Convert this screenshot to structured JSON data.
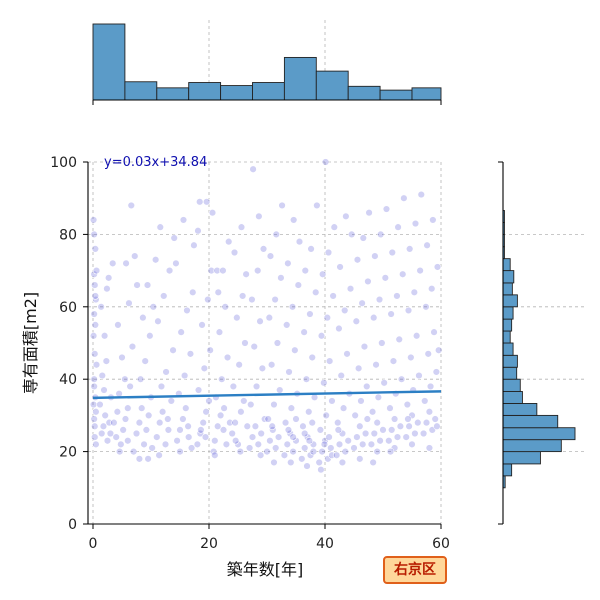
{
  "chart_data": {
    "type": "scatter",
    "xlabel": "築年数[年]",
    "ylabel": "専有面積[m2]",
    "xlim": [
      -1,
      60
    ],
    "ylim": [
      0,
      100
    ],
    "x_ticks": [
      0,
      20,
      40,
      60
    ],
    "y_ticks": [
      0,
      20,
      40,
      60,
      80,
      100
    ],
    "grid": true,
    "regression": {
      "equation": "y=0.03x+34.84",
      "slope": 0.03,
      "intercept": 34.84
    },
    "badge": "右京区",
    "colors": {
      "points": "#5a5ad8",
      "regression": "#2c7fc4",
      "histogram": "#5b9bc8",
      "badge_border": "#e0601a",
      "badge_fill": "#ffd79a",
      "badge_text": "#b81d00"
    },
    "top_histogram": {
      "bin_edges": [
        0,
        5.5,
        11,
        16.5,
        22,
        27.5,
        33,
        38.5,
        44,
        49.5,
        55,
        60.5
      ],
      "counts": [
        100,
        24,
        16,
        23,
        19,
        23,
        56,
        38,
        18,
        13,
        16
      ]
    },
    "right_histogram": {
      "bin_edges": [
        10,
        13.3,
        16.6,
        20,
        23.3,
        26.6,
        30,
        33.3,
        36.6,
        40,
        43.3,
        46.6,
        50,
        53.3,
        56.6,
        60,
        63.3,
        66.6,
        70,
        73.3,
        76.6,
        80,
        83.3,
        86.6
      ],
      "counts": [
        3,
        12,
        52,
        81,
        100,
        76,
        47,
        27,
        24,
        19,
        20,
        14,
        10,
        12,
        14,
        20,
        13,
        15,
        10,
        2,
        2,
        2,
        2
      ]
    },
    "points": [
      [
        0.3,
        27
      ],
      [
        0.2,
        29
      ],
      [
        0.5,
        31
      ],
      [
        0.1,
        33
      ],
      [
        0.4,
        35
      ],
      [
        0.2,
        40
      ],
      [
        0.6,
        44
      ],
      [
        0.3,
        47
      ],
      [
        0.1,
        52
      ],
      [
        0.4,
        55
      ],
      [
        0.2,
        58
      ],
      [
        0.5,
        62
      ],
      [
        0.3,
        66
      ],
      [
        0.2,
        69
      ],
      [
        0.6,
        70
      ],
      [
        0.4,
        76
      ],
      [
        0.2,
        80
      ],
      [
        0.1,
        84
      ],
      [
        0.3,
        24
      ],
      [
        0.5,
        22
      ],
      [
        0.2,
        38
      ],
      [
        0.4,
        63
      ],
      [
        1.5,
        25
      ],
      [
        1.8,
        27
      ],
      [
        2.1,
        30
      ],
      [
        2.5,
        23
      ],
      [
        1.2,
        33
      ],
      [
        2.8,
        28
      ],
      [
        3.1,
        35
      ],
      [
        1.6,
        41
      ],
      [
        2.3,
        45
      ],
      [
        2.0,
        52
      ],
      [
        1.4,
        60
      ],
      [
        2.7,
        68
      ],
      [
        3.4,
        72
      ],
      [
        1.9,
        37
      ],
      [
        2.4,
        65
      ],
      [
        3.0,
        25
      ],
      [
        3.6,
        28
      ],
      [
        4.2,
        31
      ],
      [
        4.0,
        24
      ],
      [
        4.8,
        22
      ],
      [
        5.2,
        26
      ],
      [
        5.6,
        29
      ],
      [
        6.0,
        32
      ],
      [
        4.5,
        36
      ],
      [
        5.5,
        40
      ],
      [
        6.4,
        38
      ],
      [
        5.0,
        46
      ],
      [
        4.3,
        55
      ],
      [
        6.8,
        49
      ],
      [
        6.2,
        61
      ],
      [
        5.7,
        72
      ],
      [
        6.6,
        88
      ],
      [
        7.2,
        74
      ],
      [
        7.6,
        66
      ],
      [
        4.6,
        20
      ],
      [
        6.0,
        23
      ],
      [
        7.0,
        20
      ],
      [
        7.5,
        25
      ],
      [
        8.0,
        28
      ],
      [
        8.4,
        32
      ],
      [
        8.8,
        22
      ],
      [
        9.2,
        26
      ],
      [
        9.6,
        30
      ],
      [
        10.0,
        35
      ],
      [
        8.2,
        40
      ],
      [
        9.0,
        45
      ],
      [
        9.8,
        52
      ],
      [
        8.6,
        57
      ],
      [
        10.4,
        60
      ],
      [
        9.4,
        66
      ],
      [
        10.8,
        73
      ],
      [
        8.0,
        18
      ],
      [
        9.5,
        18
      ],
      [
        10.2,
        21
      ],
      [
        11,
        24
      ],
      [
        11.5,
        28
      ],
      [
        12,
        31
      ],
      [
        12.5,
        22
      ],
      [
        13,
        26
      ],
      [
        13.5,
        34
      ],
      [
        11.8,
        38
      ],
      [
        12.6,
        42
      ],
      [
        13.8,
        48
      ],
      [
        11.2,
        56
      ],
      [
        12.2,
        63
      ],
      [
        13.2,
        70
      ],
      [
        11.6,
        82
      ],
      [
        14,
        79
      ],
      [
        12.9,
        29
      ],
      [
        11.4,
        19
      ],
      [
        14.5,
        23
      ],
      [
        15,
        26
      ],
      [
        15.5,
        29
      ],
      [
        16,
        32
      ],
      [
        16.5,
        24
      ],
      [
        17,
        21
      ],
      [
        14.8,
        36
      ],
      [
        15.8,
        41
      ],
      [
        16.8,
        47
      ],
      [
        15.2,
        53
      ],
      [
        16.2,
        59
      ],
      [
        17.2,
        64
      ],
      [
        14.3,
        72
      ],
      [
        15.6,
        84
      ],
      [
        17.4,
        77
      ],
      [
        16.4,
        27
      ],
      [
        15,
        20
      ],
      [
        18,
        22
      ],
      [
        18.5,
        25
      ],
      [
        19,
        28
      ],
      [
        19.5,
        31
      ],
      [
        20,
        34
      ],
      [
        18.2,
        37
      ],
      [
        19.2,
        43
      ],
      [
        20.2,
        48
      ],
      [
        18.8,
        55
      ],
      [
        19.8,
        62
      ],
      [
        20.4,
        70
      ],
      [
        18.4,
        89
      ],
      [
        19.6,
        89
      ],
      [
        20.6,
        86
      ],
      [
        18.1,
        81
      ],
      [
        19.4,
        24
      ],
      [
        20.8,
        20
      ],
      [
        18.6,
        26
      ],
      [
        21,
        23
      ],
      [
        21.5,
        27
      ],
      [
        22,
        30
      ],
      [
        22.5,
        26
      ],
      [
        23,
        22
      ],
      [
        21.2,
        35
      ],
      [
        22.2,
        40
      ],
      [
        23.2,
        46
      ],
      [
        21.8,
        53
      ],
      [
        22.8,
        60
      ],
      [
        21.4,
        70
      ],
      [
        22.4,
        70
      ],
      [
        23.4,
        78
      ],
      [
        21.6,
        64
      ],
      [
        22.6,
        32
      ],
      [
        23.6,
        28
      ],
      [
        21,
        19
      ],
      [
        24,
        25
      ],
      [
        24.5,
        28
      ],
      [
        25,
        22
      ],
      [
        25.5,
        31
      ],
      [
        26,
        34
      ],
      [
        24.2,
        38
      ],
      [
        25.2,
        44
      ],
      [
        26.2,
        50
      ],
      [
        24.8,
        57
      ],
      [
        25.8,
        63
      ],
      [
        26.4,
        69
      ],
      [
        24.4,
        75
      ],
      [
        25.6,
        82
      ],
      [
        24.6,
        23
      ],
      [
        26.6,
        27
      ],
      [
        25.4,
        20
      ],
      [
        27,
        21
      ],
      [
        27.5,
        24
      ],
      [
        28,
        27
      ],
      [
        28.5,
        22
      ],
      [
        29,
        25
      ],
      [
        27.2,
        33
      ],
      [
        28.2,
        38
      ],
      [
        29.2,
        43
      ],
      [
        27.8,
        49
      ],
      [
        28.8,
        56
      ],
      [
        27.4,
        62
      ],
      [
        28.4,
        70
      ],
      [
        29.4,
        76
      ],
      [
        28.6,
        85
      ],
      [
        27.6,
        98
      ],
      [
        29.6,
        29
      ],
      [
        28.9,
        19
      ],
      [
        30,
        20
      ],
      [
        30.5,
        23
      ],
      [
        31,
        26
      ],
      [
        31.5,
        21
      ],
      [
        32,
        24
      ],
      [
        30.2,
        29
      ],
      [
        31.2,
        33
      ],
      [
        32.2,
        37
      ],
      [
        30.8,
        44
      ],
      [
        31.8,
        50
      ],
      [
        30.4,
        57
      ],
      [
        31.4,
        62
      ],
      [
        32.4,
        68
      ],
      [
        30.6,
        74
      ],
      [
        31.6,
        80
      ],
      [
        32.6,
        88
      ],
      [
        31.2,
        17
      ],
      [
        30.9,
        27
      ],
      [
        33,
        19
      ],
      [
        33.5,
        22
      ],
      [
        34,
        25
      ],
      [
        34.5,
        20
      ],
      [
        35,
        23
      ],
      [
        33.2,
        28
      ],
      [
        34.2,
        32
      ],
      [
        35.2,
        36
      ],
      [
        33.8,
        42
      ],
      [
        34.8,
        48
      ],
      [
        33.4,
        55
      ],
      [
        34.4,
        60
      ],
      [
        35.4,
        66
      ],
      [
        33.6,
        72
      ],
      [
        34.6,
        84
      ],
      [
        35.6,
        78
      ],
      [
        34.1,
        17
      ],
      [
        33.7,
        26
      ],
      [
        35,
        29
      ],
      [
        34.5,
        24
      ],
      [
        36,
        18
      ],
      [
        36.5,
        21
      ],
      [
        37,
        24
      ],
      [
        37.5,
        19
      ],
      [
        38,
        22
      ],
      [
        36.2,
        27
      ],
      [
        37.2,
        31
      ],
      [
        38.2,
        35
      ],
      [
        36.8,
        40
      ],
      [
        37.8,
        46
      ],
      [
        36.4,
        53
      ],
      [
        37.4,
        58
      ],
      [
        38.4,
        64
      ],
      [
        36.6,
        70
      ],
      [
        37.6,
        76
      ],
      [
        38.6,
        88
      ],
      [
        36.9,
        16
      ],
      [
        37.3,
        23
      ],
      [
        38,
        20
      ],
      [
        36.5,
        25
      ],
      [
        37.8,
        28
      ],
      [
        39,
        17
      ],
      [
        39.5,
        20
      ],
      [
        40,
        23
      ],
      [
        40.5,
        18
      ],
      [
        41,
        21
      ],
      [
        39.2,
        26
      ],
      [
        40.2,
        30
      ],
      [
        41.2,
        34
      ],
      [
        39.8,
        39
      ],
      [
        40.8,
        45
      ],
      [
        39.4,
        52
      ],
      [
        40.4,
        57
      ],
      [
        41.4,
        63
      ],
      [
        39.6,
        69
      ],
      [
        40.6,
        75
      ],
      [
        41.6,
        82
      ],
      [
        40.1,
        100
      ],
      [
        39.3,
        15
      ],
      [
        40.7,
        24
      ],
      [
        41.2,
        19
      ],
      [
        39.9,
        22
      ],
      [
        42,
        19
      ],
      [
        42.5,
        22
      ],
      [
        43,
        25
      ],
      [
        43.5,
        20
      ],
      [
        44,
        23
      ],
      [
        42.2,
        28
      ],
      [
        43.2,
        32
      ],
      [
        44.2,
        36
      ],
      [
        42.8,
        41
      ],
      [
        43.8,
        47
      ],
      [
        42.4,
        54
      ],
      [
        43.4,
        59
      ],
      [
        44.4,
        65
      ],
      [
        42.6,
        71
      ],
      [
        43.6,
        85
      ],
      [
        44.6,
        80
      ],
      [
        43,
        17
      ],
      [
        42.3,
        26
      ],
      [
        45,
        21
      ],
      [
        45.5,
        24
      ],
      [
        46,
        27
      ],
      [
        46.5,
        22
      ],
      [
        47,
        25
      ],
      [
        45.2,
        30
      ],
      [
        46.2,
        34
      ],
      [
        47.2,
        38
      ],
      [
        45.8,
        43
      ],
      [
        46.8,
        49
      ],
      [
        45.4,
        56
      ],
      [
        46.4,
        61
      ],
      [
        47.4,
        67
      ],
      [
        45.6,
        73
      ],
      [
        46.6,
        79
      ],
      [
        47.6,
        86
      ],
      [
        46,
        18
      ],
      [
        47.3,
        29
      ],
      [
        48,
        22
      ],
      [
        48.5,
        25
      ],
      [
        49,
        28
      ],
      [
        49.5,
        23
      ],
      [
        50,
        26
      ],
      [
        48.2,
        31
      ],
      [
        49.2,
        35
      ],
      [
        50.2,
        39
      ],
      [
        48.8,
        44
      ],
      [
        49.8,
        50
      ],
      [
        48.4,
        57
      ],
      [
        49.4,
        62
      ],
      [
        50.4,
        68
      ],
      [
        48.6,
        74
      ],
      [
        49.6,
        80
      ],
      [
        50.6,
        87
      ],
      [
        49,
        20
      ],
      [
        48.3,
        17
      ],
      [
        51,
        23
      ],
      [
        51.5,
        26
      ],
      [
        52,
        29
      ],
      [
        52.5,
        24
      ],
      [
        53,
        27
      ],
      [
        51.2,
        32
      ],
      [
        52.2,
        36
      ],
      [
        53.2,
        40
      ],
      [
        51.8,
        45
      ],
      [
        52.8,
        51
      ],
      [
        51.4,
        58
      ],
      [
        52.4,
        63
      ],
      [
        53.4,
        69
      ],
      [
        51.6,
        75
      ],
      [
        52.6,
        82
      ],
      [
        53.6,
        90
      ],
      [
        52,
        21
      ],
      [
        51.3,
        20
      ],
      [
        54,
        24
      ],
      [
        54.5,
        27
      ],
      [
        55,
        30
      ],
      [
        55.5,
        25
      ],
      [
        56,
        28
      ],
      [
        54.2,
        33
      ],
      [
        55.2,
        37
      ],
      [
        56.2,
        41
      ],
      [
        54.8,
        46
      ],
      [
        55.8,
        52
      ],
      [
        54.4,
        59
      ],
      [
        55.4,
        64
      ],
      [
        56.4,
        70
      ],
      [
        54.6,
        76
      ],
      [
        55.6,
        83
      ],
      [
        56.6,
        91
      ],
      [
        55,
        22
      ],
      [
        54.3,
        29
      ],
      [
        57,
        25
      ],
      [
        57.5,
        28
      ],
      [
        58,
        31
      ],
      [
        58.5,
        26
      ],
      [
        59,
        29
      ],
      [
        57.2,
        34
      ],
      [
        58.2,
        38
      ],
      [
        59.2,
        42
      ],
      [
        57.8,
        47
      ],
      [
        58.8,
        53
      ],
      [
        57.4,
        60
      ],
      [
        58.4,
        65
      ],
      [
        59.4,
        71
      ],
      [
        57.6,
        77
      ],
      [
        58.6,
        84
      ],
      [
        59.6,
        48
      ],
      [
        58,
        21
      ],
      [
        59.3,
        27
      ]
    ]
  }
}
